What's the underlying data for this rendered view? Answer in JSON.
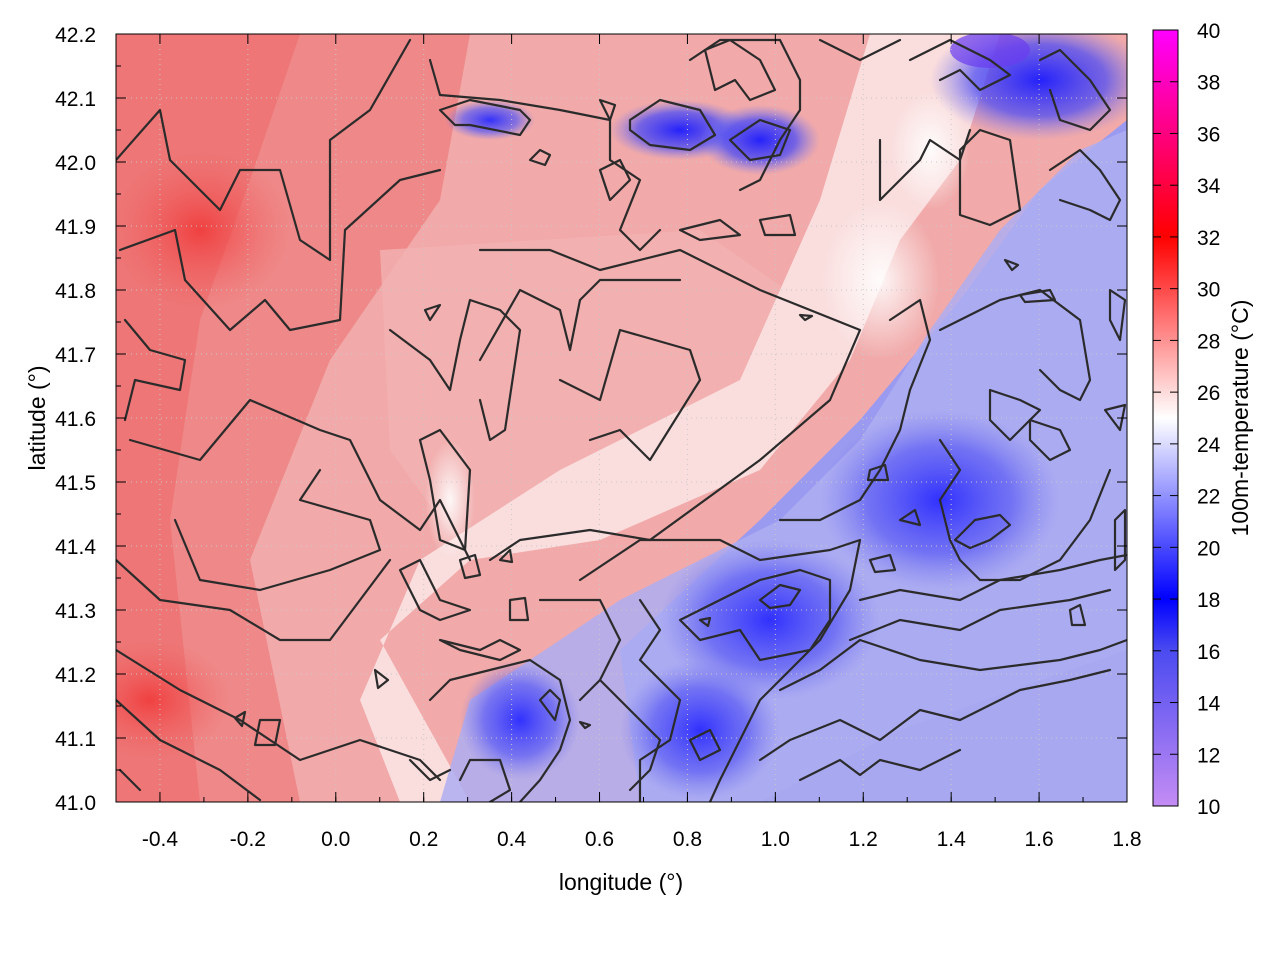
{
  "chart_data": {
    "type": "heatmap",
    "title": "",
    "xlabel": "longitude (°)",
    "ylabel": "latitude (°)",
    "colorbar_label": "100m-temperature (°C)",
    "xlim": [
      -0.5,
      1.8
    ],
    "ylim": [
      41.0,
      42.2
    ],
    "x_ticks": [
      "-0.4",
      "-0.2",
      "0.0",
      "0.2",
      "0.4",
      "0.6",
      "0.8",
      "1.0",
      "1.2",
      "1.4",
      "1.6",
      "1.8"
    ],
    "y_ticks": [
      "41.0",
      "41.1",
      "41.2",
      "41.3",
      "41.4",
      "41.5",
      "41.6",
      "41.7",
      "41.8",
      "41.9",
      "42.0",
      "42.1",
      "42.2"
    ],
    "colorbar_range": [
      10,
      40
    ],
    "colorbar_ticks": [
      "10",
      "12",
      "14",
      "16",
      "18",
      "20",
      "22",
      "24",
      "26",
      "28",
      "30",
      "32",
      "34",
      "36",
      "38",
      "40"
    ],
    "colormap": [
      {
        "value": 10,
        "color": "#c48cf4"
      },
      {
        "value": 16,
        "color": "#4b4bf0"
      },
      {
        "value": 18,
        "color": "#0000ff"
      },
      {
        "value": 25,
        "color": "#ffffff"
      },
      {
        "value": 32,
        "color": "#ff0000"
      },
      {
        "value": 40,
        "color": "#ff00ff"
      }
    ],
    "grid": true,
    "contours": true,
    "field_description": "Warm red field (28–31 °C) over the west and centre, white transition around 25 °C along a SW–NE band, and cool blue field (16–22 °C) over the east, with coldest cores near lon 1.0 lat 41.3 and lon 1.6 lat 42.15"
  }
}
